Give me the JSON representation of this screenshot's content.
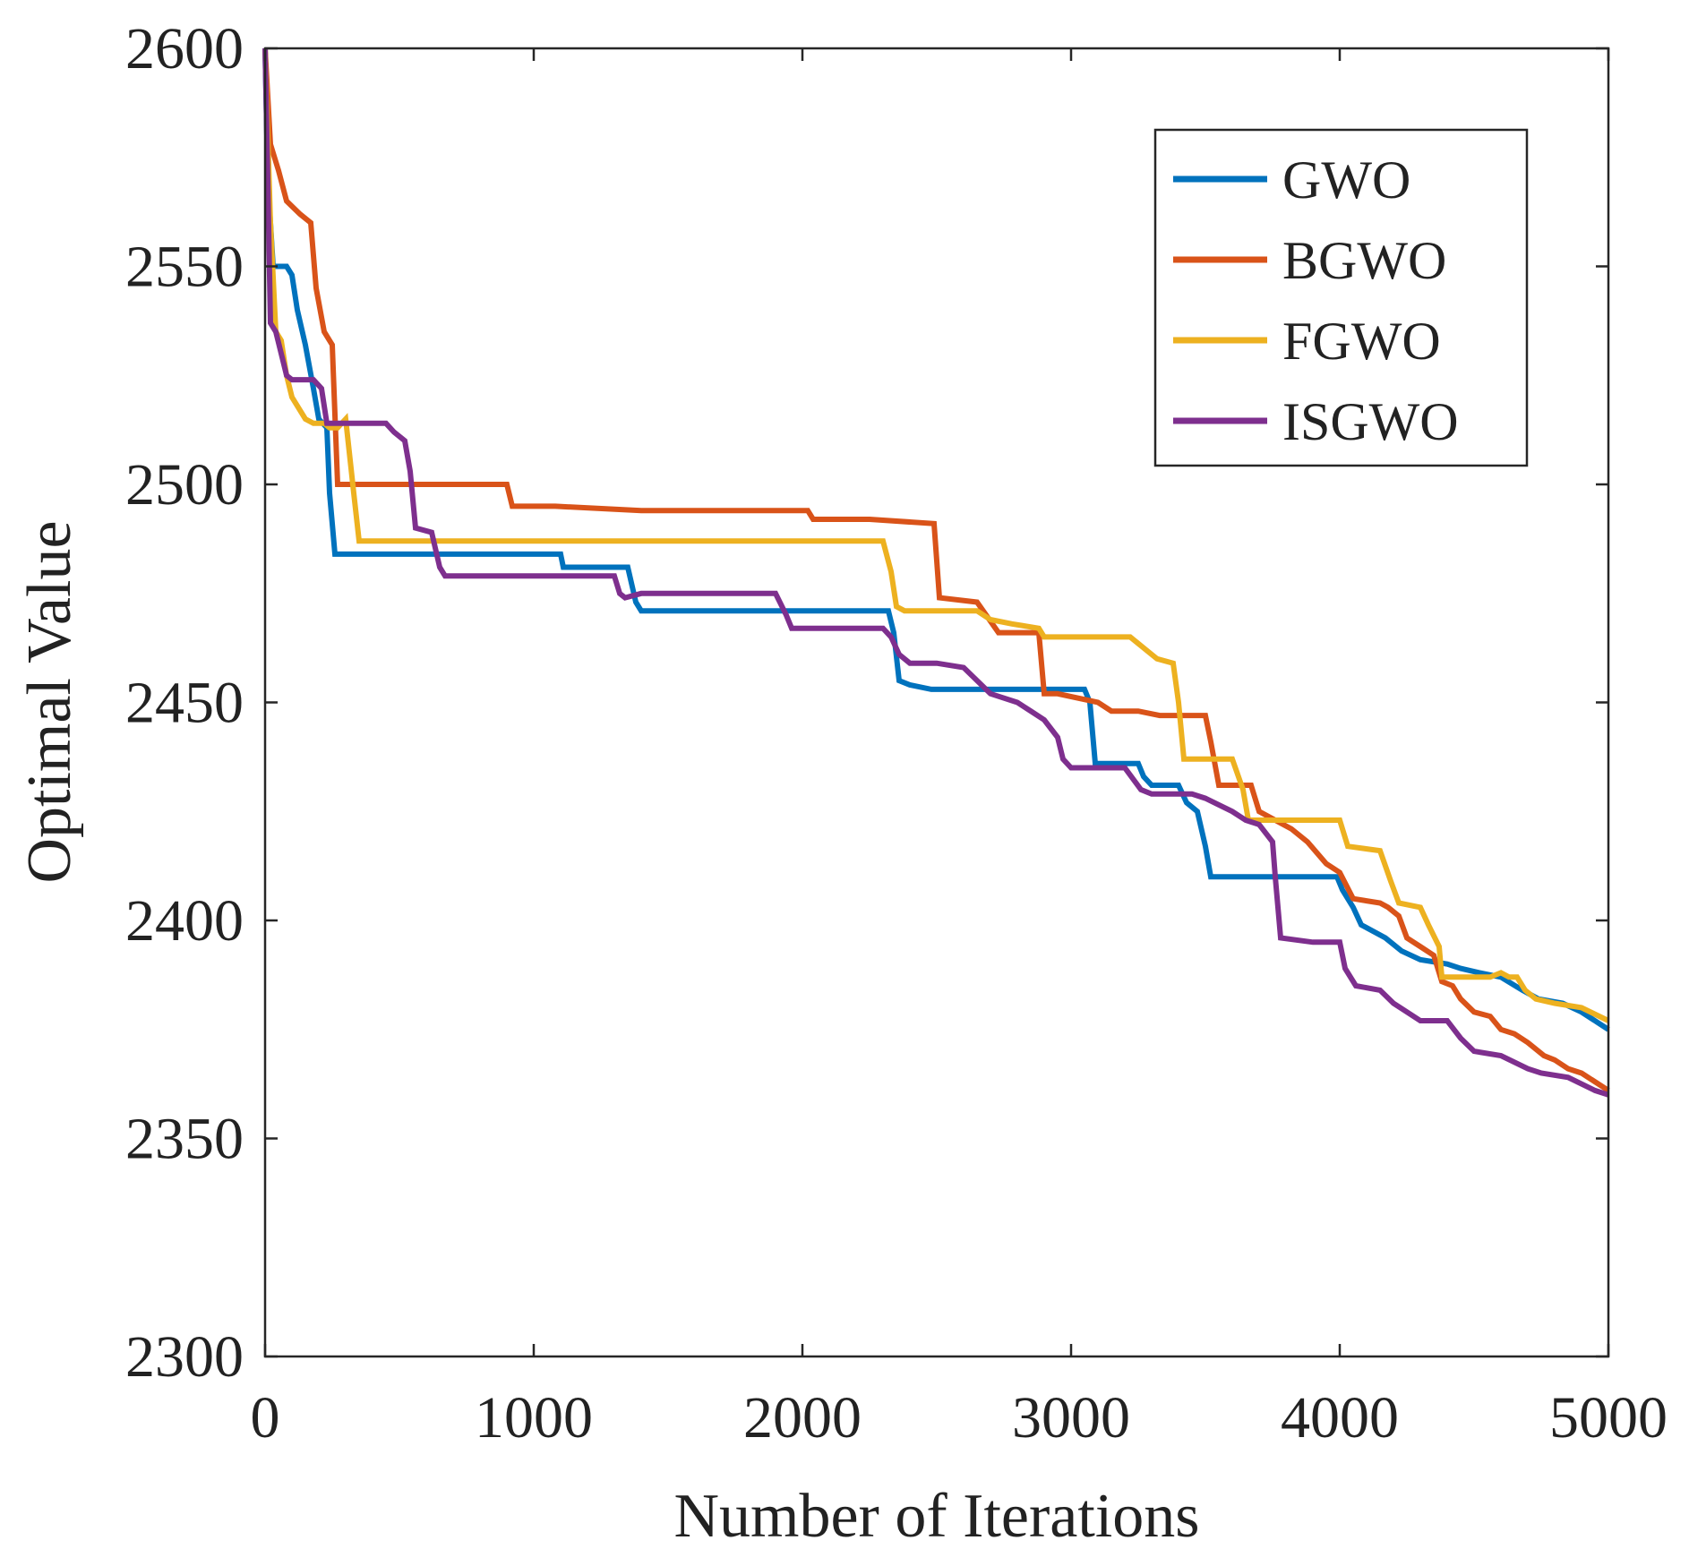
{
  "chart_data": {
    "type": "line",
    "title": "",
    "xlabel": "Number of Iterations",
    "ylabel": "Optimal Value",
    "xlim": [
      0,
      5000
    ],
    "ylim": [
      2300,
      2600
    ],
    "xticks": [
      "0",
      "1000",
      "2000",
      "3000",
      "4000",
      "5000"
    ],
    "yticks": [
      "2300",
      "2350",
      "2400",
      "2450",
      "2500",
      "2550",
      "2600"
    ],
    "grid": false,
    "legend_position": "top-right",
    "series": [
      {
        "name": "GWO",
        "color": "#0072BD",
        "points": [
          [
            0,
            2600
          ],
          [
            10,
            2570
          ],
          [
            30,
            2550
          ],
          [
            80,
            2550
          ],
          [
            100,
            2548
          ],
          [
            120,
            2540
          ],
          [
            150,
            2532
          ],
          [
            180,
            2522
          ],
          [
            200,
            2515
          ],
          [
            230,
            2513
          ],
          [
            240,
            2498
          ],
          [
            260,
            2484
          ],
          [
            1100,
            2484
          ],
          [
            1110,
            2481
          ],
          [
            1350,
            2481
          ],
          [
            1380,
            2473
          ],
          [
            1400,
            2471
          ],
          [
            2320,
            2471
          ],
          [
            2340,
            2466
          ],
          [
            2360,
            2455
          ],
          [
            2400,
            2454
          ],
          [
            2480,
            2453
          ],
          [
            3050,
            2453
          ],
          [
            3070,
            2450
          ],
          [
            3090,
            2436
          ],
          [
            3250,
            2436
          ],
          [
            3270,
            2433
          ],
          [
            3300,
            2431
          ],
          [
            3400,
            2431
          ],
          [
            3430,
            2427
          ],
          [
            3470,
            2425
          ],
          [
            3500,
            2417
          ],
          [
            3520,
            2410
          ],
          [
            3990,
            2410
          ],
          [
            4010,
            2407
          ],
          [
            4050,
            2403
          ],
          [
            4080,
            2399
          ],
          [
            4170,
            2396
          ],
          [
            4230,
            2393
          ],
          [
            4300,
            2391
          ],
          [
            4400,
            2390
          ],
          [
            4450,
            2389
          ],
          [
            4520,
            2388
          ],
          [
            4600,
            2387
          ],
          [
            4680,
            2384
          ],
          [
            4740,
            2382
          ],
          [
            4830,
            2381
          ],
          [
            4900,
            2379
          ],
          [
            5000,
            2375
          ]
        ]
      },
      {
        "name": "BGWO",
        "color": "#D95319",
        "points": [
          [
            0,
            2600
          ],
          [
            20,
            2578
          ],
          [
            50,
            2572
          ],
          [
            80,
            2565
          ],
          [
            130,
            2562
          ],
          [
            170,
            2560
          ],
          [
            190,
            2545
          ],
          [
            220,
            2535
          ],
          [
            250,
            2532
          ],
          [
            270,
            2500
          ],
          [
            900,
            2500
          ],
          [
            920,
            2495
          ],
          [
            1050,
            2495
          ],
          [
            1080,
            2495
          ],
          [
            1400,
            2494
          ],
          [
            2020,
            2494
          ],
          [
            2040,
            2492
          ],
          [
            2250,
            2492
          ],
          [
            2490,
            2491
          ],
          [
            2510,
            2474
          ],
          [
            2650,
            2473
          ],
          [
            2730,
            2466
          ],
          [
            2880,
            2466
          ],
          [
            2900,
            2452
          ],
          [
            2950,
            2452
          ],
          [
            3100,
            2450
          ],
          [
            3150,
            2448
          ],
          [
            3250,
            2448
          ],
          [
            3330,
            2447
          ],
          [
            3500,
            2447
          ],
          [
            3520,
            2441
          ],
          [
            3550,
            2431
          ],
          [
            3670,
            2431
          ],
          [
            3700,
            2425
          ],
          [
            3820,
            2421
          ],
          [
            3880,
            2418
          ],
          [
            3950,
            2413
          ],
          [
            4000,
            2411
          ],
          [
            4050,
            2405
          ],
          [
            4150,
            2404
          ],
          [
            4180,
            2403
          ],
          [
            4220,
            2401
          ],
          [
            4250,
            2396
          ],
          [
            4300,
            2394
          ],
          [
            4350,
            2392
          ],
          [
            4380,
            2386
          ],
          [
            4420,
            2385
          ],
          [
            4450,
            2382
          ],
          [
            4500,
            2379
          ],
          [
            4560,
            2378
          ],
          [
            4600,
            2375
          ],
          [
            4650,
            2374
          ],
          [
            4700,
            2372
          ],
          [
            4760,
            2369
          ],
          [
            4800,
            2368
          ],
          [
            4850,
            2366
          ],
          [
            4900,
            2365
          ],
          [
            4950,
            2363
          ],
          [
            5000,
            2361
          ]
        ]
      },
      {
        "name": "FGWO",
        "color": "#EDB120",
        "points": [
          [
            0,
            2600
          ],
          [
            20,
            2560
          ],
          [
            40,
            2535
          ],
          [
            60,
            2533
          ],
          [
            80,
            2525
          ],
          [
            100,
            2520
          ],
          [
            150,
            2515
          ],
          [
            180,
            2514
          ],
          [
            220,
            2514
          ],
          [
            240,
            2513
          ],
          [
            270,
            2513
          ],
          [
            300,
            2515
          ],
          [
            330,
            2498
          ],
          [
            350,
            2487
          ],
          [
            2300,
            2487
          ],
          [
            2330,
            2480
          ],
          [
            2350,
            2472
          ],
          [
            2380,
            2471
          ],
          [
            2650,
            2471
          ],
          [
            2700,
            2469
          ],
          [
            2780,
            2468
          ],
          [
            2880,
            2467
          ],
          [
            2900,
            2465
          ],
          [
            3000,
            2465
          ],
          [
            3220,
            2465
          ],
          [
            3280,
            2462
          ],
          [
            3320,
            2460
          ],
          [
            3380,
            2459
          ],
          [
            3400,
            2450
          ],
          [
            3420,
            2437
          ],
          [
            3600,
            2437
          ],
          [
            3640,
            2430
          ],
          [
            3660,
            2423
          ],
          [
            4000,
            2423
          ],
          [
            4030,
            2417
          ],
          [
            4150,
            2416
          ],
          [
            4190,
            2409
          ],
          [
            4220,
            2404
          ],
          [
            4300,
            2403
          ],
          [
            4330,
            2399
          ],
          [
            4370,
            2394
          ],
          [
            4380,
            2387
          ],
          [
            4560,
            2387
          ],
          [
            4600,
            2388
          ],
          [
            4630,
            2387
          ],
          [
            4660,
            2387
          ],
          [
            4690,
            2384
          ],
          [
            4730,
            2382
          ],
          [
            4800,
            2381
          ],
          [
            4900,
            2380
          ],
          [
            5000,
            2377
          ]
        ]
      },
      {
        "name": "ISGWO",
        "color": "#7E2F8E",
        "points": [
          [
            0,
            2600
          ],
          [
            10,
            2570
          ],
          [
            20,
            2537
          ],
          [
            40,
            2535
          ],
          [
            60,
            2530
          ],
          [
            80,
            2525
          ],
          [
            100,
            2524
          ],
          [
            150,
            2524
          ],
          [
            180,
            2524
          ],
          [
            210,
            2522
          ],
          [
            230,
            2514
          ],
          [
            450,
            2514
          ],
          [
            480,
            2512
          ],
          [
            520,
            2510
          ],
          [
            540,
            2503
          ],
          [
            560,
            2490
          ],
          [
            620,
            2489
          ],
          [
            650,
            2481
          ],
          [
            670,
            2479
          ],
          [
            1300,
            2479
          ],
          [
            1320,
            2475
          ],
          [
            1340,
            2474
          ],
          [
            1400,
            2475
          ],
          [
            1900,
            2475
          ],
          [
            1940,
            2470
          ],
          [
            1960,
            2467
          ],
          [
            2300,
            2467
          ],
          [
            2330,
            2465
          ],
          [
            2360,
            2461
          ],
          [
            2400,
            2459
          ],
          [
            2500,
            2459
          ],
          [
            2600,
            2458
          ],
          [
            2650,
            2455
          ],
          [
            2700,
            2452
          ],
          [
            2800,
            2450
          ],
          [
            2850,
            2448
          ],
          [
            2900,
            2446
          ],
          [
            2950,
            2442
          ],
          [
            2970,
            2437
          ],
          [
            3000,
            2435
          ],
          [
            3200,
            2435
          ],
          [
            3260,
            2430
          ],
          [
            3300,
            2429
          ],
          [
            3450,
            2429
          ],
          [
            3500,
            2428
          ],
          [
            3600,
            2425
          ],
          [
            3650,
            2423
          ],
          [
            3700,
            2422
          ],
          [
            3750,
            2418
          ],
          [
            3760,
            2410
          ],
          [
            3780,
            2396
          ],
          [
            3900,
            2395
          ],
          [
            4000,
            2395
          ],
          [
            4020,
            2389
          ],
          [
            4060,
            2385
          ],
          [
            4150,
            2384
          ],
          [
            4200,
            2381
          ],
          [
            4250,
            2379
          ],
          [
            4300,
            2377
          ],
          [
            4400,
            2377
          ],
          [
            4450,
            2373
          ],
          [
            4500,
            2370
          ],
          [
            4600,
            2369
          ],
          [
            4700,
            2366
          ],
          [
            4750,
            2365
          ],
          [
            4850,
            2364
          ],
          [
            4950,
            2361
          ],
          [
            5000,
            2360
          ]
        ]
      }
    ]
  }
}
